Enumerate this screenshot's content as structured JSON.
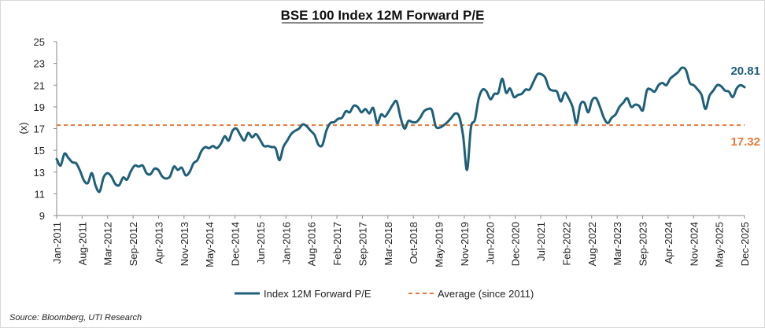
{
  "chart_data": {
    "type": "line",
    "title": "BSE 100 Index 12M Forward P/E",
    "ylabel": "(x)",
    "ylim": [
      9,
      25
    ],
    "yticks": [
      9,
      11,
      13,
      15,
      17,
      19,
      21,
      23,
      25
    ],
    "xtick_labels": [
      "Jan-2011",
      "Aug-2011",
      "Mar-2012",
      "Sep-2012",
      "Apr-2013",
      "Nov-2013",
      "May-2014",
      "Dec-2014",
      "Jun-2015",
      "Jan-2016",
      "Aug-2016",
      "Feb-2017",
      "Sep-2017",
      "Mar-2018",
      "Oct-2018",
      "May-2019",
      "Nov-2019",
      "Jun-2020",
      "Dec-2020",
      "Jul-2021",
      "Feb-2022",
      "Aug-2022",
      "Mar-2023",
      "Sep-2023",
      "Apr-2024",
      "Nov-2024",
      "May-2025",
      "Dec-2025"
    ],
    "series": [
      {
        "name": "Index 12M Forward P/E",
        "color": "#1f5f7a",
        "x_start": "Jan-2011",
        "frequency": "monthly",
        "values": [
          14.2,
          13.6,
          14.7,
          14.3,
          13.9,
          13.8,
          13.1,
          12.2,
          12.0,
          12.9,
          11.7,
          11.2,
          12.5,
          12.9,
          12.6,
          11.9,
          11.8,
          12.5,
          12.3,
          13.1,
          13.6,
          13.5,
          13.6,
          12.9,
          12.8,
          13.3,
          13.2,
          12.6,
          12.4,
          12.6,
          13.5,
          13.2,
          13.4,
          12.7,
          13.0,
          13.8,
          14.1,
          14.9,
          15.3,
          15.2,
          15.4,
          15.2,
          15.6,
          16.3,
          15.9,
          16.8,
          17.0,
          16.4,
          15.9,
          16.6,
          16.2,
          16.5,
          16.0,
          15.4,
          15.4,
          15.3,
          15.2,
          14.1,
          15.3,
          15.9,
          16.5,
          16.8,
          17.0,
          17.4,
          17.2,
          16.8,
          16.4,
          15.5,
          15.5,
          16.8,
          17.5,
          17.6,
          17.9,
          18.0,
          18.6,
          18.5,
          19.1,
          19.0,
          18.5,
          18.8,
          18.4,
          18.9,
          17.5,
          18.3,
          18.1,
          18.6,
          19.2,
          19.5,
          18.0,
          17.0,
          17.7,
          17.6,
          17.6,
          18.0,
          18.6,
          18.8,
          18.7,
          17.2,
          17.1,
          17.3,
          17.6,
          18.0,
          18.4,
          18.1,
          16.3,
          13.2,
          17.1,
          17.8,
          19.8,
          20.6,
          20.4,
          19.7,
          20.2,
          20.3,
          21.6,
          20.3,
          20.7,
          19.9,
          20.1,
          20.2,
          20.6,
          20.6,
          21.3,
          22.0,
          22.0,
          21.7,
          20.7,
          20.5,
          20.4,
          19.5,
          20.3,
          19.8,
          19.0,
          17.5,
          19.2,
          19.4,
          18.5,
          19.6,
          19.8,
          19.0,
          18.0,
          17.5,
          18.0,
          18.3,
          19.0,
          19.4,
          19.8,
          19.0,
          19.2,
          19.1,
          18.7,
          20.5,
          20.6,
          20.4,
          21.0,
          21.2,
          21.0,
          21.6,
          21.9,
          22.2,
          22.6,
          22.4,
          21.2,
          21.0,
          20.6,
          20.1,
          18.8,
          20.0,
          20.5,
          21.0,
          20.9,
          20.5,
          20.4,
          19.9,
          20.7,
          21.0,
          20.81
        ]
      },
      {
        "name": "Average (since 2011)",
        "color": "#e8793b",
        "value": 17.32
      }
    ],
    "annotations": [
      {
        "text": "20.81",
        "color": "#1f5f7a"
      },
      {
        "text": "17.32",
        "color": "#e8793b"
      }
    ],
    "grid": false,
    "legend": "bottom-center"
  },
  "source": "Source: Bloomberg, UTI Research"
}
